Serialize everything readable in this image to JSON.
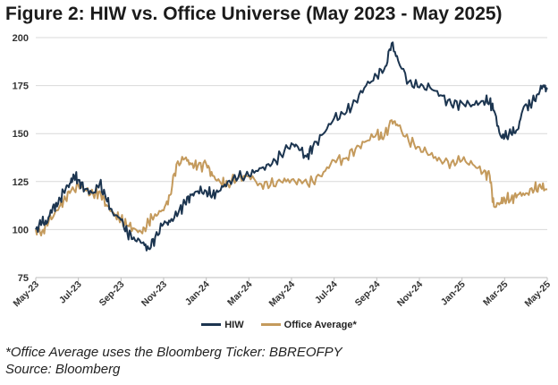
{
  "title": "Figure 2: HIW vs. Office Universe (May 2023 - May 2025)",
  "footnote": "*Office Average uses the Bloomberg Ticker: BBREOFPY",
  "source": "Source: Bloomberg",
  "colors": {
    "hiw": "#1c3550",
    "office": "#c49a5c",
    "grid": "#d9d9d9",
    "axis": "#bdbdbd"
  },
  "chart_data": {
    "type": "line",
    "title": "Figure 2: HIW vs. Office Universe (May 2023 - May 2025)",
    "ylim": [
      75,
      200
    ],
    "y_ticks": [
      75,
      100,
      125,
      150,
      175,
      200
    ],
    "x_range": [
      0,
      24
    ],
    "x_tick_labels": [
      "May-23",
      "Jul-23",
      "Sep-23",
      "Nov-23",
      "Jan-24",
      "Mar-24",
      "May-24",
      "Jul-24",
      "Sep-24",
      "Nov-24",
      "Jan-25",
      "Mar-25",
      "May-25"
    ],
    "grid": true,
    "legend_position": "bottom",
    "series": [
      {
        "name": "HIW",
        "points": [
          [
            0,
            100
          ],
          [
            0.3,
            104
          ],
          [
            0.5,
            103
          ],
          [
            0.8,
            112
          ],
          [
            1,
            112
          ],
          [
            1.3,
            120
          ],
          [
            1.6,
            124
          ],
          [
            1.8,
            128
          ],
          [
            2,
            126
          ],
          [
            2.3,
            121
          ],
          [
            2.7,
            119
          ],
          [
            3,
            124
          ],
          [
            3.3,
            116
          ],
          [
            3.6,
            109
          ],
          [
            4,
            105
          ],
          [
            4.3,
            98
          ],
          [
            4.6,
            96
          ],
          [
            5,
            93
          ],
          [
            5.3,
            90
          ],
          [
            5.6,
            96
          ],
          [
            6,
            103
          ],
          [
            6.3,
            104
          ],
          [
            6.7,
            109
          ],
          [
            7,
            114
          ],
          [
            7.3,
            118
          ],
          [
            7.6,
            120
          ],
          [
            8,
            120
          ],
          [
            8.3,
            118
          ],
          [
            8.6,
            120
          ],
          [
            9,
            125
          ],
          [
            9.5,
            127
          ],
          [
            10,
            128
          ],
          [
            10.5,
            132
          ],
          [
            11,
            133
          ],
          [
            11.5,
            139
          ],
          [
            12,
            145
          ],
          [
            12.3,
            143
          ],
          [
            12.7,
            138
          ],
          [
            13,
            143
          ],
          [
            13.5,
            150
          ],
          [
            14,
            158
          ],
          [
            14.5,
            160
          ],
          [
            15,
            167
          ],
          [
            15.5,
            175
          ],
          [
            16,
            180
          ],
          [
            16.4,
            185
          ],
          [
            16.7,
            197
          ],
          [
            17,
            188
          ],
          [
            17.5,
            177
          ],
          [
            18,
            174
          ],
          [
            18.5,
            174
          ],
          [
            19,
            170
          ],
          [
            19.5,
            165
          ],
          [
            20,
            166
          ],
          [
            20.5,
            165
          ],
          [
            21,
            167
          ],
          [
            21.3,
            167
          ],
          [
            21.5,
            162
          ],
          [
            21.8,
            149
          ],
          [
            22,
            148
          ],
          [
            22.3,
            150
          ],
          [
            22.6,
            152
          ],
          [
            22.9,
            164
          ],
          [
            23.2,
            165
          ],
          [
            23.5,
            170
          ],
          [
            23.8,
            175
          ],
          [
            24,
            173
          ]
        ]
      },
      {
        "name": "Office Average*",
        "points": [
          [
            0,
            100
          ],
          [
            0.3,
            99
          ],
          [
            0.6,
            104
          ],
          [
            1,
            110
          ],
          [
            1.3,
            115
          ],
          [
            1.6,
            119
          ],
          [
            2,
            123
          ],
          [
            2.3,
            121
          ],
          [
            2.7,
            118
          ],
          [
            3,
            120
          ],
          [
            3.3,
            113
          ],
          [
            3.7,
            108
          ],
          [
            4,
            105
          ],
          [
            4.3,
            102
          ],
          [
            4.7,
            100
          ],
          [
            5,
            98
          ],
          [
            5.3,
            104
          ],
          [
            5.6,
            108
          ],
          [
            6,
            110
          ],
          [
            6.3,
            118
          ],
          [
            6.6,
            134
          ],
          [
            7,
            137
          ],
          [
            7.3,
            134
          ],
          [
            7.6,
            133
          ],
          [
            8,
            134
          ],
          [
            8.3,
            128
          ],
          [
            8.7,
            124
          ],
          [
            9,
            124
          ],
          [
            9.5,
            127
          ],
          [
            10,
            128
          ],
          [
            10.5,
            124
          ],
          [
            11,
            123
          ],
          [
            11.5,
            125
          ],
          [
            12,
            126
          ],
          [
            12.5,
            124
          ],
          [
            13,
            125
          ],
          [
            13.5,
            130
          ],
          [
            14,
            136
          ],
          [
            14.5,
            137
          ],
          [
            15,
            142
          ],
          [
            15.5,
            146
          ],
          [
            16,
            150
          ],
          [
            16.3,
            147
          ],
          [
            16.7,
            157
          ],
          [
            17,
            154
          ],
          [
            17.5,
            146
          ],
          [
            18,
            143
          ],
          [
            18.5,
            139
          ],
          [
            19,
            136
          ],
          [
            19.5,
            135
          ],
          [
            20,
            136
          ],
          [
            20.5,
            134
          ],
          [
            21,
            130
          ],
          [
            21.3,
            128
          ],
          [
            21.5,
            112
          ],
          [
            21.8,
            114
          ],
          [
            22,
            116
          ],
          [
            22.3,
            116
          ],
          [
            22.6,
            118
          ],
          [
            23,
            119
          ],
          [
            23.4,
            121
          ],
          [
            23.7,
            122
          ],
          [
            24,
            121
          ]
        ]
      }
    ]
  }
}
